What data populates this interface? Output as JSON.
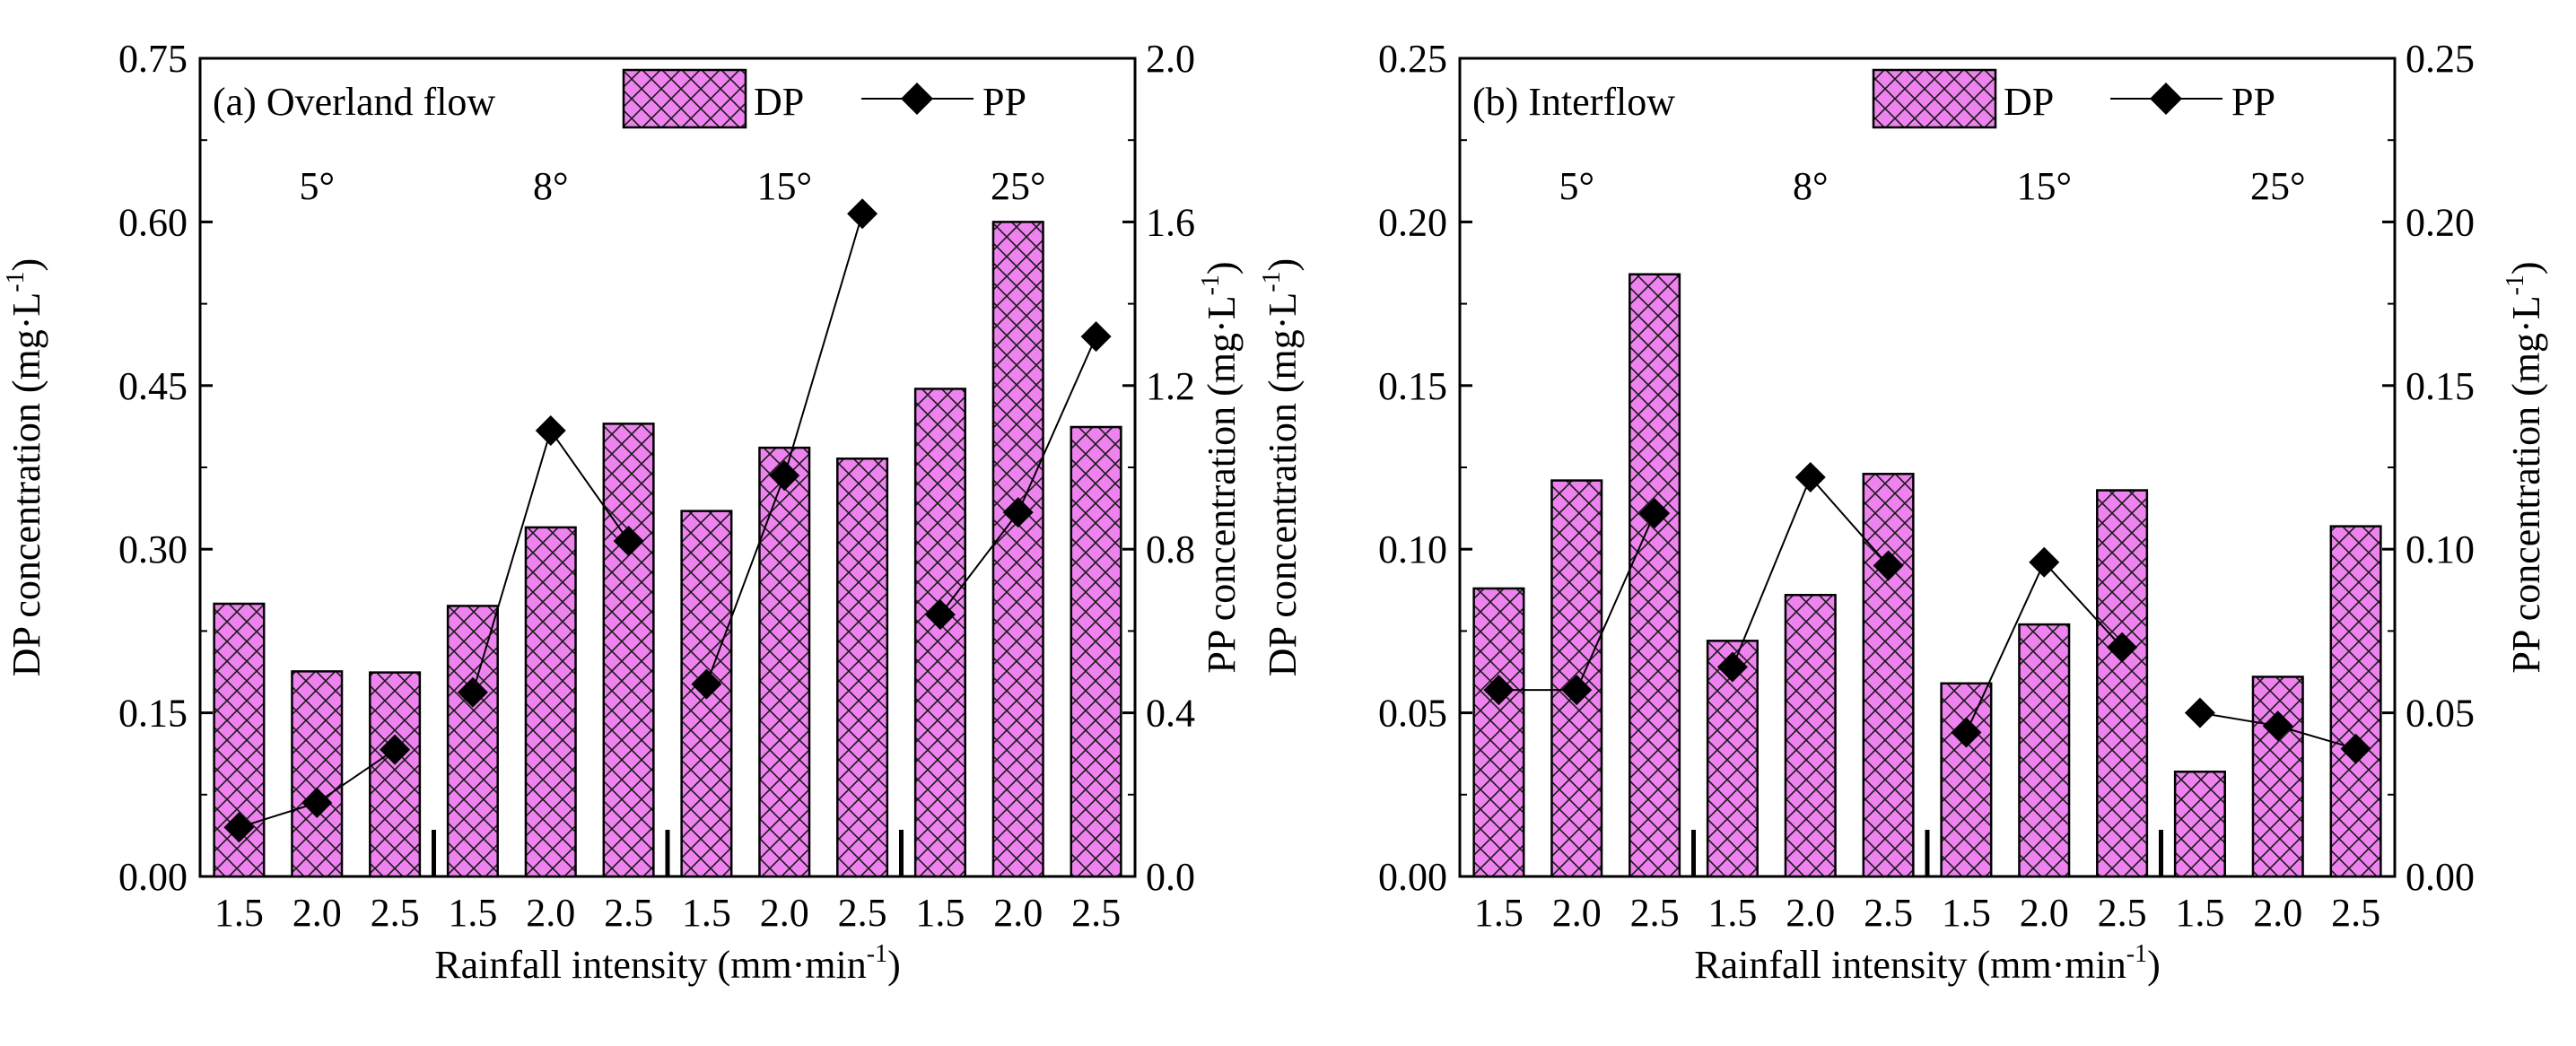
{
  "colors": {
    "bar_fill": "#ee82ee",
    "bar_hatch": "#1a1a1a",
    "line": "#000000",
    "marker": "#000000"
  },
  "chart_data": [
    {
      "type": "bar",
      "panel_label": "(a) Overland flow",
      "categories": [
        "1.5",
        "2.0",
        "2.5",
        "1.5",
        "2.0",
        "2.5",
        "1.5",
        "2.0",
        "2.5",
        "1.5",
        "2.0",
        "2.5"
      ],
      "groups": [
        "5°",
        "8°",
        "15°",
        "25°"
      ],
      "xlabel_main": "Rainfall intensity (mm·min",
      "xlabel_sup": "-1",
      "xlabel_end": ")",
      "ylabel_left": "DP concentration (mg·L",
      "ylabel_left_sup": "-1",
      "ylabel_left_end": ")",
      "ylabel_right": "PP concentration (mg·L",
      "ylabel_right_sup": "-1",
      "ylabel_right_end": ")",
      "ylim_left": [
        0,
        0.75
      ],
      "ylim_right": [
        0,
        2.0
      ],
      "yticks_left": [
        "0.00",
        "0.15",
        "0.30",
        "0.45",
        "0.60",
        "0.75"
      ],
      "yticks_right": [
        "0.0",
        "0.4",
        "0.8",
        "1.2",
        "1.6",
        "2.0"
      ],
      "legend_position": "top",
      "series": [
        {
          "name": "DP",
          "kind": "bar",
          "axis": "left",
          "values": [
            0.25,
            0.188,
            0.187,
            0.248,
            0.32,
            0.415,
            0.335,
            0.393,
            0.383,
            0.447,
            0.6,
            0.412
          ]
        },
        {
          "name": "PP",
          "kind": "line",
          "axis": "right",
          "values": [
            0.12,
            0.18,
            0.31,
            0.45,
            1.09,
            0.82,
            0.47,
            0.98,
            1.62,
            0.64,
            0.89,
            1.32
          ]
        }
      ]
    },
    {
      "type": "bar",
      "panel_label": "(b) Interflow",
      "categories": [
        "1.5",
        "2.0",
        "2.5",
        "1.5",
        "2.0",
        "2.5",
        "1.5",
        "2.0",
        "2.5",
        "1.5",
        "2.0",
        "2.5"
      ],
      "groups": [
        "5°",
        "8°",
        "15°",
        "25°"
      ],
      "xlabel_main": "Rainfall intensity (mm·min",
      "xlabel_sup": "-1",
      "xlabel_end": ")",
      "ylabel_left": "DP concentration (mg·L",
      "ylabel_left_sup": "-1",
      "ylabel_left_end": ")",
      "ylabel_right": "PP concentration (mg·L",
      "ylabel_right_sup": "-1",
      "ylabel_right_end": ")",
      "ylim_left": [
        0,
        0.25
      ],
      "ylim_right": [
        0,
        0.25
      ],
      "yticks_left": [
        "0.00",
        "0.05",
        "0.10",
        "0.15",
        "0.20",
        "0.25"
      ],
      "yticks_right": [
        "0.00",
        "0.05",
        "0.10",
        "0.15",
        "0.20",
        "0.25"
      ],
      "legend_position": "top",
      "series": [
        {
          "name": "DP",
          "kind": "bar",
          "axis": "left",
          "values": [
            0.088,
            0.121,
            0.184,
            0.072,
            0.086,
            0.123,
            0.059,
            0.077,
            0.118,
            0.032,
            0.061,
            0.107
          ]
        },
        {
          "name": "PP",
          "kind": "line",
          "axis": "right",
          "values": [
            0.057,
            0.057,
            0.111,
            0.064,
            0.122,
            0.095,
            0.044,
            0.096,
            0.07,
            0.05,
            0.046,
            0.039
          ]
        }
      ]
    }
  ]
}
